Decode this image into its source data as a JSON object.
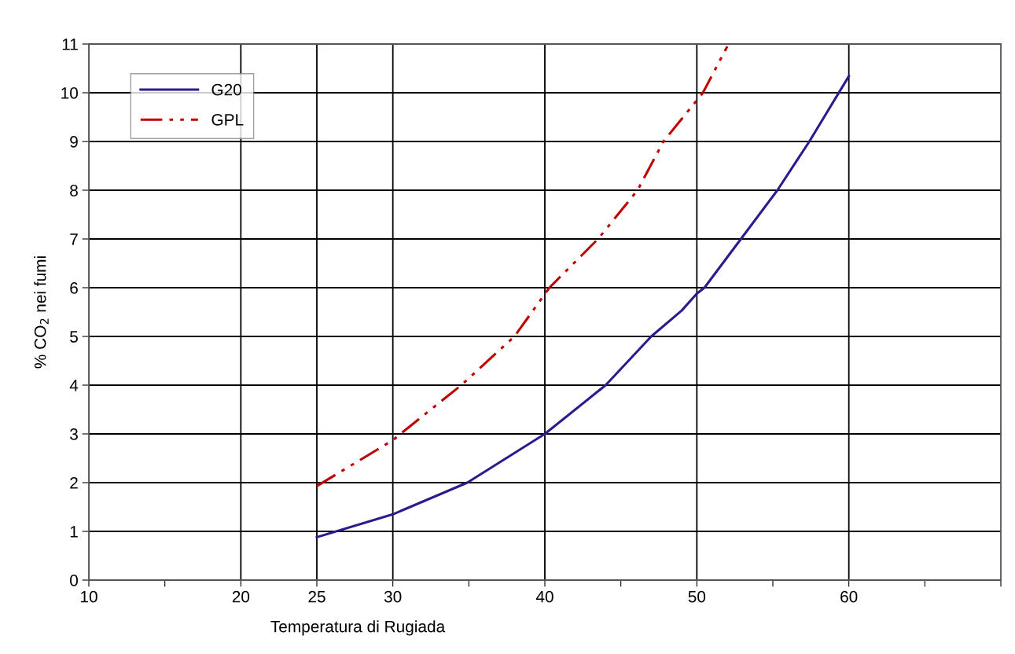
{
  "chart_data": {
    "type": "line",
    "xlabel": "Temperatura di Rugiada",
    "ylabel": "% CO$_{2}$ nei fumi",
    "xlim": [
      10,
      70
    ],
    "ylim": [
      0,
      11
    ],
    "xticks": [
      10,
      {
        "value": 15,
        "label": null
      },
      20,
      25,
      30,
      {
        "value": 35,
        "label": null
      },
      40,
      {
        "value": 45,
        "label": null
      },
      50,
      {
        "value": 55,
        "label": null
      },
      60,
      {
        "value": 65,
        "label": null
      },
      {
        "value": 70,
        "label": null
      }
    ],
    "yticks": [
      0,
      1,
      2,
      3,
      4,
      5,
      6,
      7,
      8,
      9,
      10,
      11
    ],
    "grid": true,
    "legend": "top left",
    "marker": "none",
    "series": [
      {
        "name": "G20",
        "color": "#2e1a8c",
        "line_style": "solid",
        "x": [
          25,
          30,
          34.9,
          40,
          44.0,
          47.0,
          49.0,
          50,
          50.5,
          52.9,
          55.3,
          57.4,
          60
        ],
        "values": [
          0.88,
          1.35,
          2,
          3,
          4,
          5,
          5.53,
          5.88,
          6,
          7,
          8,
          9,
          10.34
        ]
      },
      {
        "name": "GPL",
        "color": "#c00000",
        "line_style": "dashed",
        "x": [
          25,
          30,
          30.5,
          34.5,
          38.0,
          40.3,
          43.5,
          46.1,
          47.8,
          50.4,
          52.0
        ],
        "values": [
          1.93,
          2.87,
          3,
          4,
          5,
          6,
          7,
          8,
          9,
          10,
          10.95
        ]
      }
    ]
  }
}
